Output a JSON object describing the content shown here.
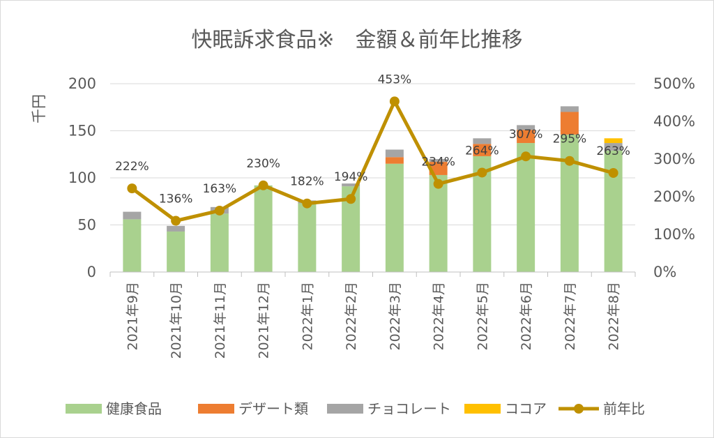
{
  "chart_data": {
    "type": "bar",
    "title": "快眠訴求食品※　金額＆前年比推移",
    "ylabel": "千円",
    "y2label": "",
    "ylim": [
      0,
      200
    ],
    "y2lim": [
      0,
      500
    ],
    "yticks": [
      "0",
      "50",
      "100",
      "150",
      "200"
    ],
    "y2ticks": [
      "0%",
      "100%",
      "200%",
      "300%",
      "400%",
      "500%"
    ],
    "grid": true,
    "legend_position": "bottom",
    "categories": [
      "2021年9月",
      "2021年10月",
      "2021年11月",
      "2021年12月",
      "2022年1月",
      "2022年2月",
      "2022年3月",
      "2022年4月",
      "2022年5月",
      "2022年6月",
      "2022年7月",
      "2022年8月"
    ],
    "series": [
      {
        "name": "健康食品",
        "kind": "bar",
        "color": "#a9d18e",
        "values": [
          56,
          43,
          62,
          92,
          73,
          91,
          115,
          103,
          123,
          137,
          146,
          129
        ]
      },
      {
        "name": "デザート類",
        "kind": "bar",
        "color": "#ed7d31",
        "values": [
          0,
          0,
          0,
          0,
          0,
          0,
          7,
          14,
          13,
          14,
          24,
          0
        ]
      },
      {
        "name": "チョコレート",
        "kind": "bar",
        "color": "#a5a5a5",
        "values": [
          8,
          6,
          7,
          0,
          3,
          3,
          8,
          3,
          6,
          5,
          6,
          8
        ]
      },
      {
        "name": "ココア",
        "kind": "bar",
        "color": "#ffc000",
        "values": [
          0,
          0,
          0,
          0,
          0,
          0,
          0,
          0,
          0,
          0,
          0,
          5
        ]
      },
      {
        "name": "前年比",
        "kind": "line",
        "axis": "right",
        "color": "#bf9000",
        "values": [
          222,
          136,
          163,
          230,
          182,
          194,
          453,
          234,
          264,
          307,
          295,
          263
        ],
        "labels": [
          "222%",
          "136%",
          "163%",
          "230%",
          "182%",
          "194%",
          "453%",
          "234%",
          "264%",
          "307%",
          "295%",
          "263%"
        ]
      }
    ]
  }
}
